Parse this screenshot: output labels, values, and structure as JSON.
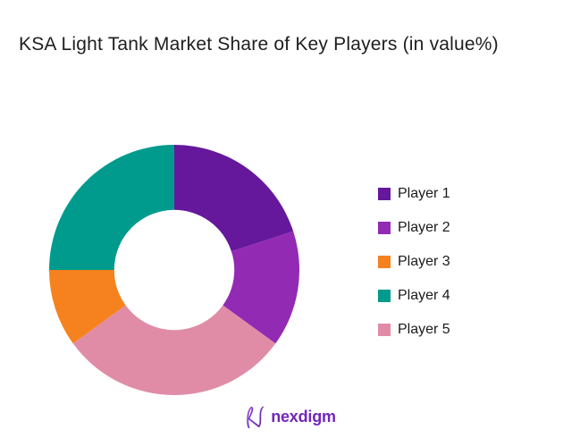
{
  "title": "KSA Light Tank Market Share of Key Players (in value%)",
  "chart_data": {
    "type": "pie",
    "subtype": "donut",
    "title": "KSA Light Tank Market Share of Key Players (in value%)",
    "categories": [
      "Player 1",
      "Player 2",
      "Player 3",
      "Player 4",
      "Player 5"
    ],
    "values": [
      20,
      15,
      10,
      25,
      30
    ],
    "unit": "value %",
    "data_labels": false,
    "legend_position": "right",
    "inner_radius_ratio": 0.48,
    "start_angle_deg": 0,
    "slices_clockwise_from_top": [
      {
        "label": "Player 1",
        "value": 20,
        "color": "#65189b"
      },
      {
        "label": "Player 2",
        "value": 15,
        "color": "#922ab4"
      },
      {
        "label": "Player 5",
        "value": 30,
        "color": "#e08ca6"
      },
      {
        "label": "Player 3",
        "value": 10,
        "color": "#f5821e"
      },
      {
        "label": "Player 4",
        "value": 25,
        "color": "#009b8d"
      }
    ]
  },
  "legend": {
    "items": [
      {
        "label": "Player 1",
        "color": "#65189b"
      },
      {
        "label": "Player 2",
        "color": "#922ab4"
      },
      {
        "label": "Player 3",
        "color": "#f5821e"
      },
      {
        "label": "Player 4",
        "color": "#009b8d"
      },
      {
        "label": "Player 5",
        "color": "#e08ca6"
      }
    ]
  },
  "footer": {
    "brand": "nexdigm",
    "brand_color": "#7126bc"
  }
}
